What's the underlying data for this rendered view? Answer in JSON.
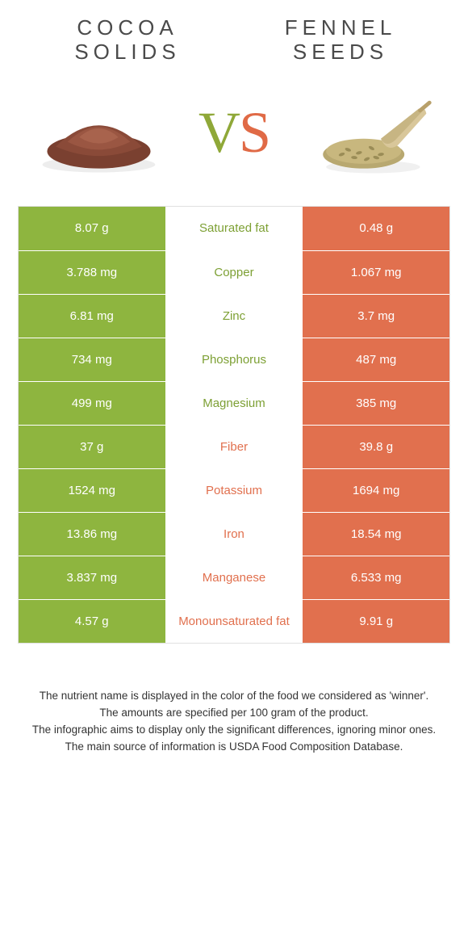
{
  "colors": {
    "green_bg": "#8eb53f",
    "orange_bg": "#e1704e",
    "green_text": "#7da034",
    "orange_text": "#e1704e",
    "title_text": "#4a4a4a",
    "body_text": "#333333",
    "border": "#e0e0e0",
    "page_bg": "#ffffff"
  },
  "header": {
    "left_title": "COCOA SOLIDS",
    "right_title": "FENNEL SEEDS",
    "vs_v": "V",
    "vs_s": "S"
  },
  "rows": [
    {
      "left": "8.07 g",
      "label": "Saturated fat",
      "right": "0.48 g",
      "winner": "left"
    },
    {
      "left": "3.788 mg",
      "label": "Copper",
      "right": "1.067 mg",
      "winner": "left"
    },
    {
      "left": "6.81 mg",
      "label": "Zinc",
      "right": "3.7 mg",
      "winner": "left"
    },
    {
      "left": "734 mg",
      "label": "Phosphorus",
      "right": "487 mg",
      "winner": "left"
    },
    {
      "left": "499 mg",
      "label": "Magnesium",
      "right": "385 mg",
      "winner": "left"
    },
    {
      "left": "37 g",
      "label": "Fiber",
      "right": "39.8 g",
      "winner": "right"
    },
    {
      "left": "1524 mg",
      "label": "Potassium",
      "right": "1694 mg",
      "winner": "right"
    },
    {
      "left": "13.86 mg",
      "label": "Iron",
      "right": "18.54 mg",
      "winner": "right"
    },
    {
      "left": "3.837 mg",
      "label": "Manganese",
      "right": "6.533 mg",
      "winner": "right"
    },
    {
      "left": "4.57 g",
      "label": "Monounsaturated fat",
      "right": "9.91 g",
      "winner": "right"
    }
  ],
  "notes": [
    "The nutrient name is displayed in the color of the food we considered as 'winner'.",
    "The amounts are specified per 100 gram of the product.",
    "The infographic aims to display only the significant differences, ignoring minor ones.",
    "The main source of information is USDA Food Composition Database."
  ]
}
